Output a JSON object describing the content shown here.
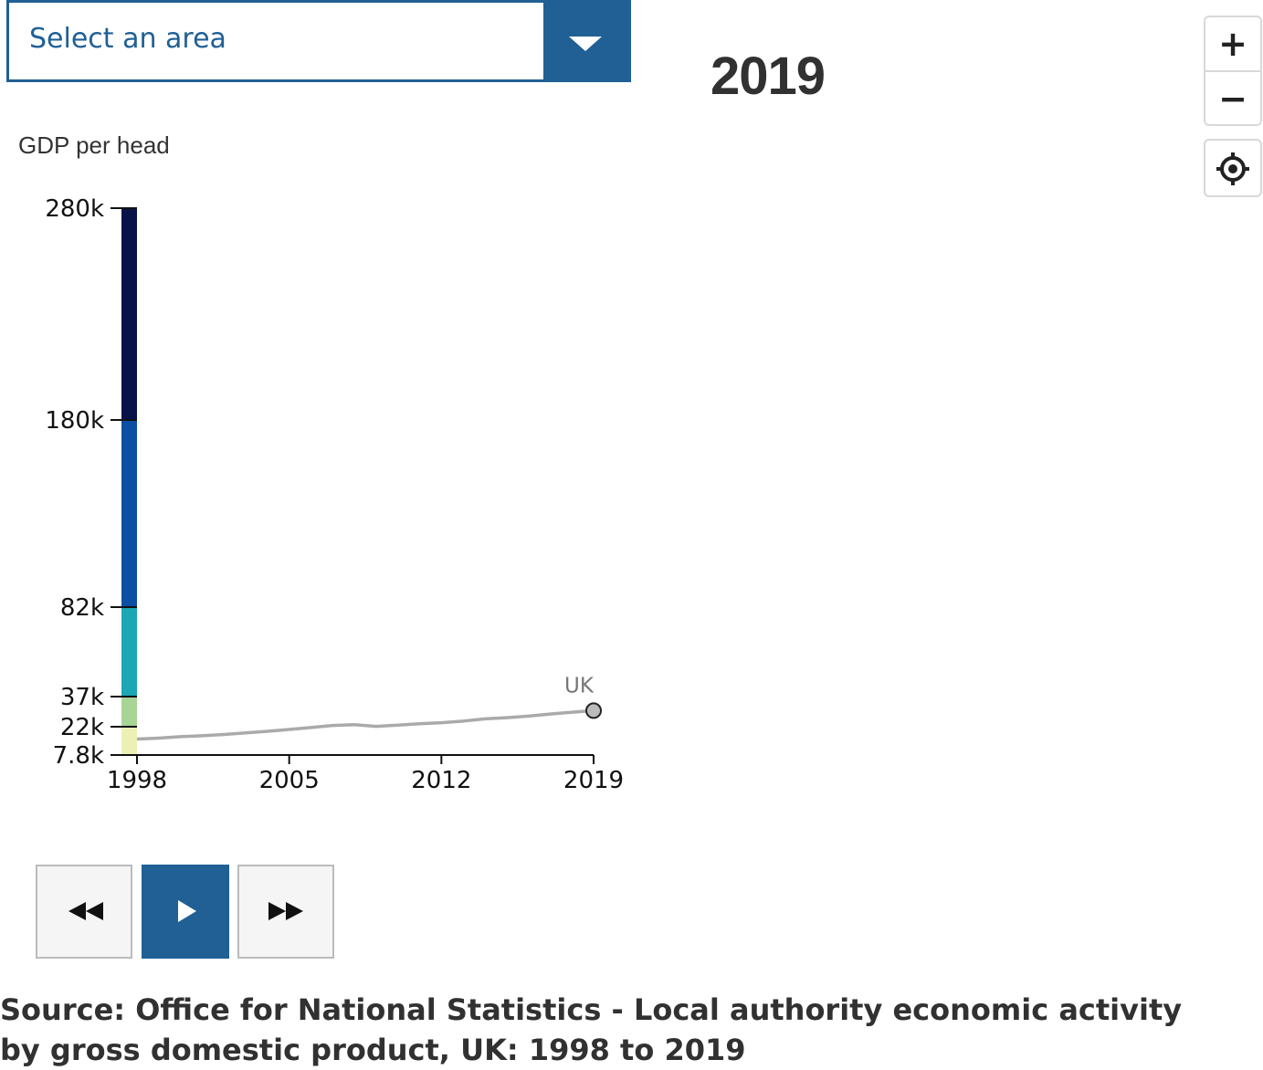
{
  "dropdown": {
    "placeholder": "Select an area"
  },
  "current_year": "2019",
  "zoom": {
    "in_label": "+",
    "out_label": "−"
  },
  "icons": {
    "dropdown": "chevron-down-icon",
    "zoom_in": "plus-icon",
    "zoom_out": "minus-icon",
    "locate": "crosshair-icon",
    "back": "rewind-icon",
    "play": "play-icon",
    "forward": "fast-forward-icon"
  },
  "colors": {
    "accent": "#206095",
    "line": "#aaaaaa"
  },
  "chart_data": {
    "type": "line",
    "ylabel": "GDP per head",
    "y_ticks": [
      {
        "value": 7800,
        "label": "7.8k"
      },
      {
        "value": 22000,
        "label": "22k"
      },
      {
        "value": 37000,
        "label": "37k"
      },
      {
        "value": 82000,
        "label": "82k"
      },
      {
        "value": 180000,
        "label": "180k"
      },
      {
        "value": 280000,
        "label": "280k"
      }
    ],
    "x_ticks": [
      1998,
      2005,
      2012,
      2019
    ],
    "xlim": [
      1998,
      2019
    ],
    "legend_bands": [
      {
        "from": 7800,
        "to": 22000,
        "color": "#edf0b5"
      },
      {
        "from": 22000,
        "to": 37000,
        "color": "#a8d595"
      },
      {
        "from": 37000,
        "to": 82000,
        "color": "#1ba7b4"
      },
      {
        "from": 82000,
        "to": 180000,
        "color": "#0b4ea2"
      },
      {
        "from": 180000,
        "to": 280000,
        "color": "#081249"
      }
    ],
    "series": [
      {
        "name": "UK",
        "x": [
          1998,
          1999,
          2000,
          2001,
          2002,
          2003,
          2004,
          2005,
          2006,
          2007,
          2008,
          2009,
          2010,
          2011,
          2012,
          2013,
          2014,
          2015,
          2016,
          2017,
          2018,
          2019
        ],
        "values": [
          15800,
          16300,
          17000,
          17500,
          18100,
          18900,
          19700,
          20600,
          21600,
          22600,
          23000,
          22200,
          22800,
          23500,
          24000,
          24800,
          25900,
          26500,
          27300,
          28300,
          29200,
          30000
        ]
      }
    ]
  },
  "source": "Source: Office for National Statistics - Local authority economic activity by gross domestic product, UK: 1998 to 2019"
}
